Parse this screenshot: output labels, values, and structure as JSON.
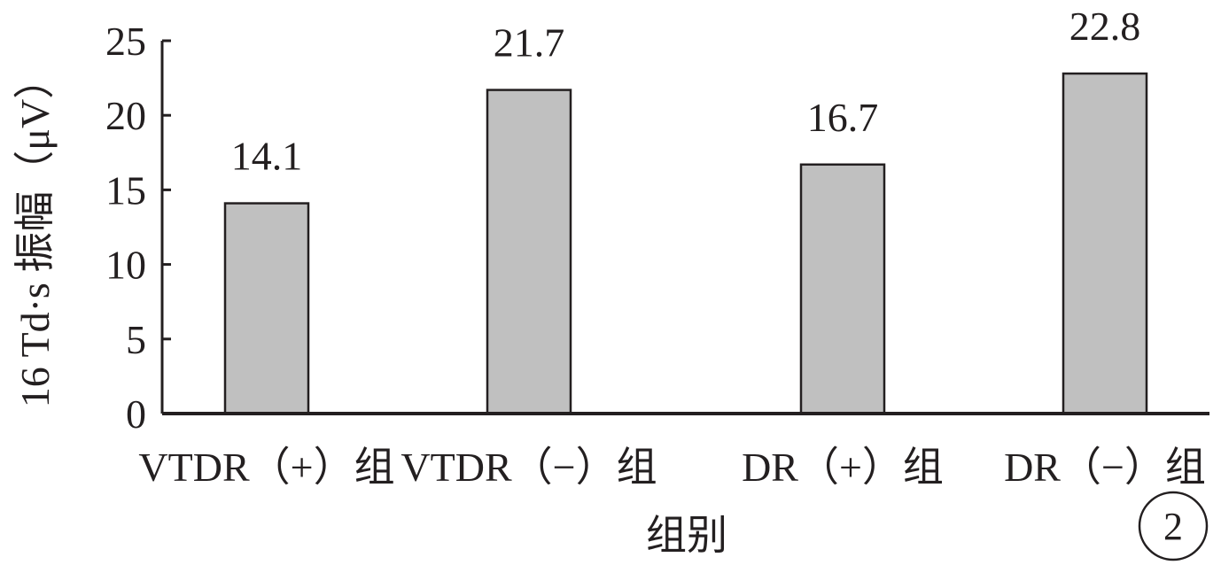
{
  "chart_data": {
    "type": "bar",
    "categories": [
      "VTDR（+）组",
      "VTDR（−）组",
      "DR（+）组",
      "DR（−）组"
    ],
    "values": [
      14.1,
      21.7,
      16.7,
      22.8
    ],
    "data_labels": [
      "14.1",
      "21.7",
      "16.7",
      "22.8"
    ],
    "title": "",
    "xlabel": "组别",
    "ylabel": "16 Td·s 振幅（μV）",
    "ylim": [
      0,
      25
    ],
    "yticks": [
      0,
      5,
      10,
      15,
      20,
      25
    ],
    "grid": false,
    "bar_color": "#c0c0c0",
    "bar_edge_color": "#231f20",
    "axis_color": "#231f20"
  },
  "badge": {
    "text": "2"
  }
}
